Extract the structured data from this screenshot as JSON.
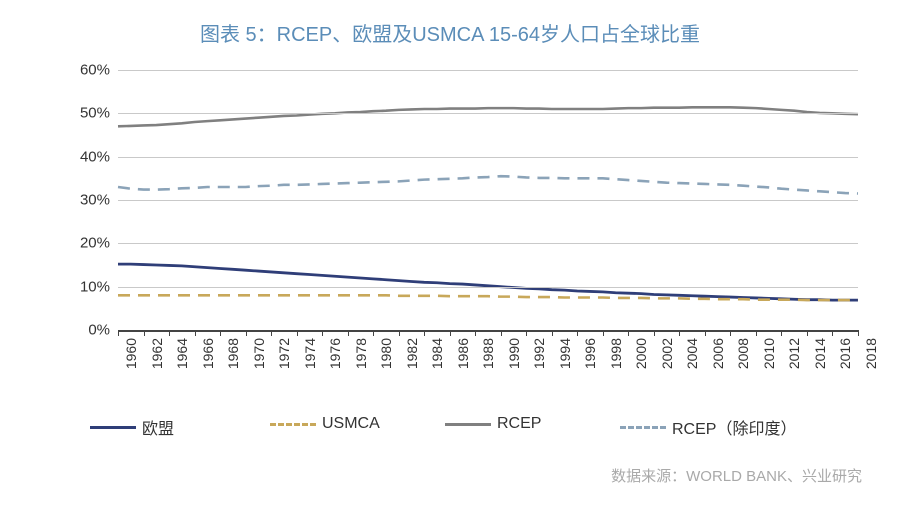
{
  "title": {
    "text": "图表 5：RCEP、欧盟及USMCA 15-64岁人口占全球比重",
    "fontsize": 20,
    "color": "#5b8db8"
  },
  "chart": {
    "type": "line",
    "background_color": "#ffffff",
    "grid_color": "#c9c9c9",
    "axis_color": "#444444",
    "ylim": [
      0,
      60
    ],
    "ytick_step": 10,
    "y_suffix": "%",
    "y_fontsize": 15,
    "x_fontsize": 14,
    "x_step": 2,
    "years": [
      1960,
      1961,
      1962,
      1963,
      1964,
      1965,
      1966,
      1967,
      1968,
      1969,
      1970,
      1971,
      1972,
      1973,
      1974,
      1975,
      1976,
      1977,
      1978,
      1979,
      1980,
      1981,
      1982,
      1983,
      1984,
      1985,
      1986,
      1987,
      1988,
      1989,
      1990,
      1991,
      1992,
      1993,
      1994,
      1995,
      1996,
      1997,
      1998,
      1999,
      2000,
      2001,
      2002,
      2003,
      2004,
      2005,
      2006,
      2007,
      2008,
      2009,
      2010,
      2011,
      2012,
      2013,
      2014,
      2015,
      2016,
      2017,
      2018
    ],
    "series": [
      {
        "key": "eu",
        "label": "欧盟",
        "color": "#2f3e78",
        "dash": "solid",
        "width": 2.8,
        "values": [
          15.2,
          15.2,
          15.1,
          15.0,
          14.9,
          14.8,
          14.6,
          14.4,
          14.2,
          14.0,
          13.8,
          13.6,
          13.4,
          13.2,
          13.0,
          12.8,
          12.6,
          12.4,
          12.2,
          12.0,
          11.8,
          11.6,
          11.4,
          11.2,
          11.0,
          10.9,
          10.7,
          10.6,
          10.4,
          10.2,
          10.0,
          9.8,
          9.6,
          9.5,
          9.3,
          9.2,
          9.0,
          8.9,
          8.8,
          8.6,
          8.5,
          8.4,
          8.2,
          8.1,
          8.0,
          7.9,
          7.8,
          7.7,
          7.6,
          7.5,
          7.4,
          7.3,
          7.2,
          7.1,
          7.0,
          7.0,
          6.9,
          6.9,
          6.9
        ]
      },
      {
        "key": "usmca",
        "label": "USMCA",
        "color": "#c8a85a",
        "dash": "dashed",
        "width": 2.6,
        "values": [
          8.0,
          8.0,
          8.0,
          8.0,
          8.0,
          8.0,
          8.0,
          8.0,
          8.0,
          8.0,
          8.0,
          8.0,
          8.0,
          8.0,
          8.0,
          8.0,
          8.0,
          8.0,
          8.0,
          8.0,
          8.0,
          8.0,
          7.9,
          7.9,
          7.9,
          7.9,
          7.8,
          7.8,
          7.8,
          7.8,
          7.7,
          7.7,
          7.6,
          7.6,
          7.6,
          7.5,
          7.5,
          7.5,
          7.5,
          7.4,
          7.4,
          7.4,
          7.3,
          7.3,
          7.3,
          7.2,
          7.2,
          7.1,
          7.1,
          7.1,
          7.0,
          7.0,
          7.0,
          7.0,
          6.9,
          6.9,
          6.9,
          6.9,
          6.9
        ]
      },
      {
        "key": "rcep",
        "label": "RCEP",
        "color": "#808080",
        "dash": "solid",
        "width": 2.6,
        "values": [
          47.0,
          47.1,
          47.2,
          47.3,
          47.5,
          47.7,
          48.0,
          48.2,
          48.4,
          48.6,
          48.8,
          49.0,
          49.2,
          49.4,
          49.5,
          49.7,
          49.9,
          50.0,
          50.2,
          50.3,
          50.5,
          50.6,
          50.8,
          50.9,
          51.0,
          51.0,
          51.1,
          51.1,
          51.1,
          51.2,
          51.2,
          51.2,
          51.1,
          51.1,
          51.0,
          51.0,
          51.0,
          51.0,
          51.0,
          51.1,
          51.2,
          51.2,
          51.3,
          51.3,
          51.3,
          51.4,
          51.4,
          51.4,
          51.4,
          51.3,
          51.2,
          51.0,
          50.8,
          50.6,
          50.3,
          50.1,
          50.0,
          49.9,
          49.8
        ]
      },
      {
        "key": "rcep_ex_india",
        "label": "RCEP（除印度）",
        "color": "#8ba3b8",
        "dash": "dashed",
        "width": 2.6,
        "values": [
          33.0,
          32.6,
          32.4,
          32.4,
          32.5,
          32.7,
          32.8,
          33.0,
          33.0,
          33.0,
          33.0,
          33.2,
          33.3,
          33.5,
          33.5,
          33.6,
          33.7,
          33.8,
          33.9,
          34.0,
          34.1,
          34.2,
          34.3,
          34.5,
          34.7,
          34.8,
          34.9,
          35.0,
          35.2,
          35.3,
          35.5,
          35.4,
          35.2,
          35.1,
          35.1,
          35.0,
          35.0,
          35.0,
          35.0,
          34.8,
          34.6,
          34.4,
          34.2,
          34.0,
          33.9,
          33.8,
          33.7,
          33.6,
          33.5,
          33.3,
          33.1,
          32.9,
          32.6,
          32.4,
          32.2,
          32.0,
          31.8,
          31.6,
          31.5
        ]
      }
    ]
  },
  "legend": {
    "fontsize": 16,
    "swatch_width": 46,
    "items_spacing": [
      0,
      180,
      355,
      530
    ]
  },
  "source": {
    "text": "数据来源：WORLD BANK、兴业研究",
    "fontsize": 15,
    "color": "#a9a9a9"
  }
}
